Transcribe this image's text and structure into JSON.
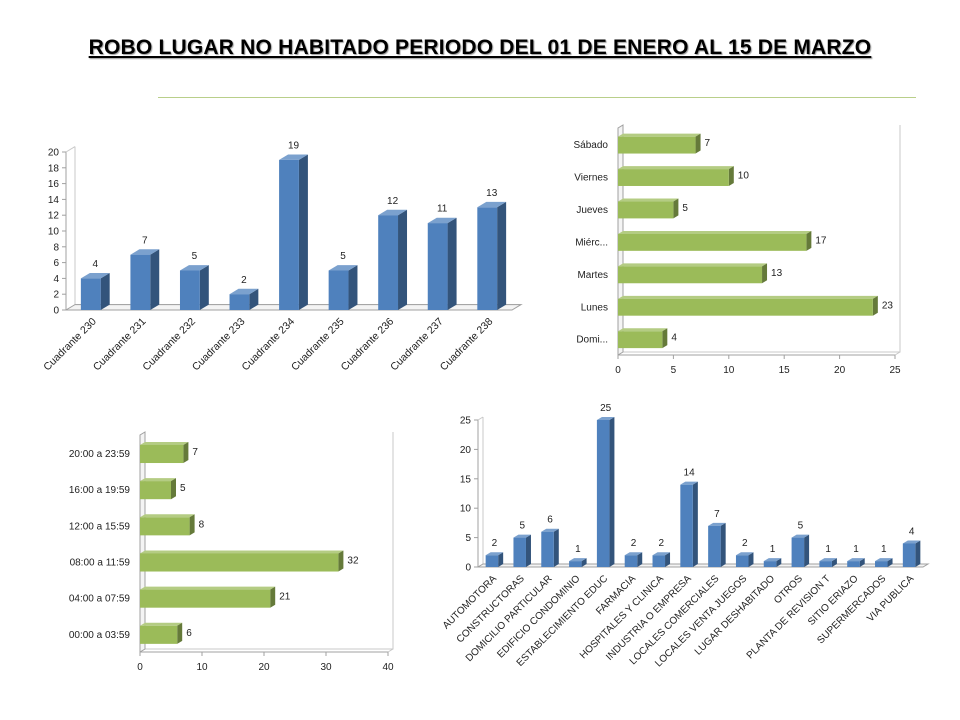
{
  "title": "ROBO LUGAR NO HABITADO PERIODO DEL 01 DE ENERO AL 15 DE MARZO",
  "colors": {
    "blue": "#4f81bd",
    "green": "#9bbb59",
    "rule": "#9bbb59"
  },
  "chart_data": [
    {
      "type": "bar",
      "orientation": "vertical",
      "categories": [
        "Cuadrante 230",
        "Cuadrante 231",
        "Cuadrante 232",
        "Cuadrante 233",
        "Cuadrante 234",
        "Cuadrante 235",
        "Cuadrante 236",
        "Cuadrante 237",
        "Cuadrante 238"
      ],
      "values": [
        4,
        7,
        5,
        2,
        19,
        5,
        12,
        11,
        13
      ],
      "ylim": [
        0,
        20
      ],
      "yticks": [
        0,
        2,
        4,
        6,
        8,
        10,
        12,
        14,
        16,
        18,
        20
      ],
      "color": "#4f81bd",
      "data_labels": true,
      "grid": false
    },
    {
      "type": "bar",
      "orientation": "horizontal",
      "categories": [
        "Domi...",
        "Lunes",
        "Martes",
        "Miérc...",
        "Jueves",
        "Viernes",
        "Sábado"
      ],
      "values": [
        4,
        23,
        13,
        17,
        5,
        10,
        7
      ],
      "xlim": [
        0,
        25
      ],
      "xticks": [
        0,
        5,
        10,
        15,
        20,
        25
      ],
      "color": "#9bbb59",
      "data_labels": true,
      "grid": false
    },
    {
      "type": "bar",
      "orientation": "horizontal",
      "categories": [
        "00:00 a 03:59",
        "04:00 a 07:59",
        "08:00 a 11:59",
        "12:00 a 15:59",
        "16:00 a 19:59",
        "20:00 a 23:59"
      ],
      "values": [
        6,
        21,
        32,
        8,
        5,
        7
      ],
      "xlim": [
        0,
        40
      ],
      "xticks": [
        0,
        10,
        20,
        30,
        40
      ],
      "color": "#9bbb59",
      "data_labels": true,
      "grid": false
    },
    {
      "type": "bar",
      "orientation": "vertical",
      "categories": [
        "AUTOMOTORA",
        "CONSTRUCTORAS",
        "DOMICILIO PARTICULAR",
        "EDIFICIO CONDOMINIO",
        "ESTABLECIMIENTO EDUC",
        "FARMACIA",
        "HOSPITALES Y CLINICA",
        "INDUSTRIA O EMPRESA",
        "LOCALES COMERCIALES",
        "LOCALES VENTA JUEGOS",
        "LUGAR DESHABITADO",
        "OTROS",
        "PLANTA DE REVISION T",
        "SITIO ERIAZO",
        "SUPERMERCADOS",
        "VIA PUBLICA"
      ],
      "values": [
        2,
        5,
        6,
        1,
        25,
        2,
        2,
        14,
        7,
        2,
        1,
        5,
        1,
        1,
        1,
        4
      ],
      "ylim": [
        0,
        25
      ],
      "yticks": [
        0,
        5,
        10,
        15,
        20,
        25
      ],
      "color": "#4f81bd",
      "data_labels": true,
      "grid": false
    }
  ]
}
